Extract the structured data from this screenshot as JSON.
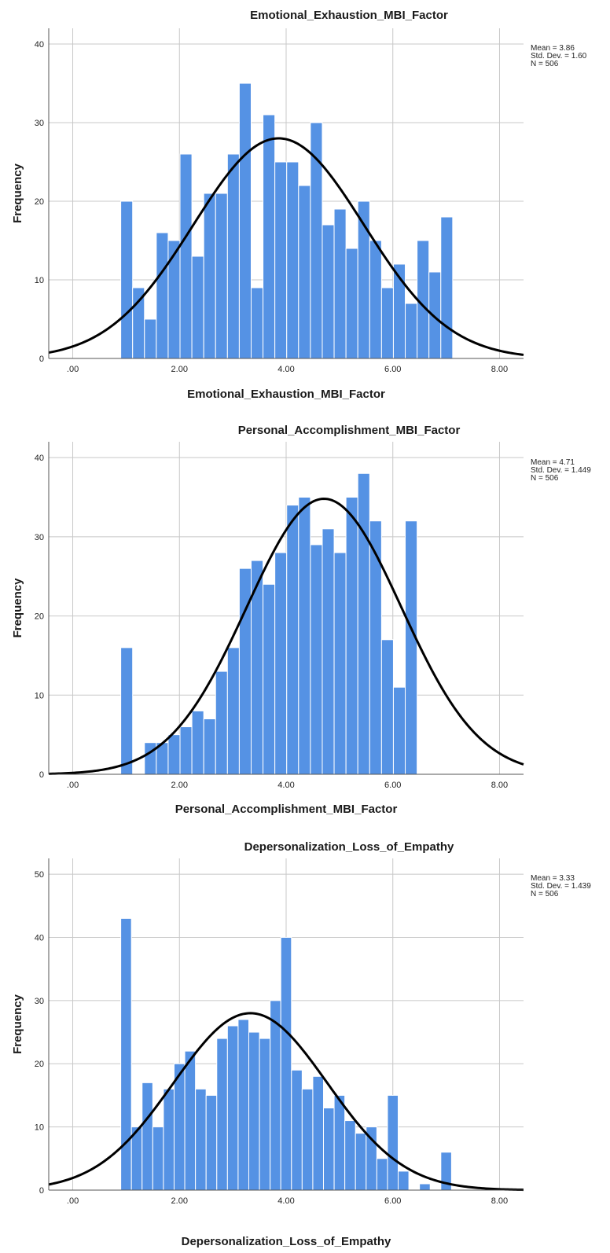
{
  "chart_data": [
    {
      "type": "bar",
      "title": "Emotional_Exhaustion_MBI_Factor",
      "xlabel": "Emotional_Exhaustion_MBI_Factor",
      "ylabel": "Frequency",
      "xlim": [
        -0.45,
        8.45
      ],
      "ylim": [
        0,
        42
      ],
      "x_ticks": [
        0,
        2,
        4,
        6,
        8
      ],
      "x_tick_labels": [
        ".00",
        "2.00",
        "4.00",
        "6.00",
        "8.00"
      ],
      "y_ticks": [
        0,
        10,
        20,
        30,
        40
      ],
      "y_tick_labels": [
        "0",
        "10",
        "20",
        "30",
        "40"
      ],
      "grid": true,
      "bin_start": 0.9,
      "bin_width": 0.2222,
      "values": [
        20,
        9,
        5,
        16,
        15,
        26,
        13,
        21,
        21,
        26,
        35,
        9,
        31,
        25,
        25,
        22,
        30,
        17,
        19,
        14,
        20,
        15,
        9,
        12,
        7,
        15,
        11,
        18
      ],
      "stats": [
        "Mean = 3.86",
        "Std. Dev. = 1.60",
        "N = 506"
      ],
      "normal_curve": {
        "mean": 3.86,
        "sd": 1.6,
        "peak": 28
      },
      "colors": {
        "bar": "#5592e4",
        "bar_edge": "#ffffff",
        "curve": "#000000",
        "grid": "#c8c8c8"
      }
    },
    {
      "type": "bar",
      "title": "Personal_Accomplishment_MBI_Factor",
      "xlabel": "Personal_Accomplishment_MBI_Factor",
      "ylabel": "Frequency",
      "xlim": [
        -0.45,
        8.45
      ],
      "ylim": [
        0,
        42
      ],
      "x_ticks": [
        0,
        2,
        4,
        6,
        8
      ],
      "x_tick_labels": [
        ".00",
        "2.00",
        "4.00",
        "6.00",
        "8.00"
      ],
      "y_ticks": [
        0,
        10,
        20,
        30,
        40
      ],
      "y_tick_labels": [
        "0",
        "10",
        "20",
        "30",
        "40"
      ],
      "grid": true,
      "bin_start": 0.9,
      "bin_width": 0.2222,
      "values": [
        16,
        0,
        4,
        4,
        5,
        6,
        8,
        7,
        13,
        16,
        26,
        27,
        24,
        28,
        34,
        35,
        29,
        31,
        28,
        35,
        38,
        32,
        17,
        11,
        32
      ],
      "stats": [
        "Mean = 4.71",
        "Std. Dev. = 1.449",
        "N = 506"
      ],
      "normal_curve": {
        "mean": 4.71,
        "sd": 1.449,
        "peak": 34.8
      },
      "colors": {
        "bar": "#5592e4",
        "bar_edge": "#ffffff",
        "curve": "#000000",
        "grid": "#c8c8c8"
      }
    },
    {
      "type": "bar",
      "title": "Depersonalization_Loss_of_Empathy",
      "xlabel": "Depersonalization_Loss_of_Empathy",
      "ylabel": "Frequency",
      "xlim": [
        -0.45,
        8.45
      ],
      "ylim": [
        0,
        52.5
      ],
      "x_ticks": [
        0,
        2,
        4,
        6,
        8
      ],
      "x_tick_labels": [
        ".00",
        "2.00",
        "4.00",
        "6.00",
        "8.00"
      ],
      "y_ticks": [
        0,
        10,
        20,
        30,
        40,
        50
      ],
      "y_tick_labels": [
        "0",
        "10",
        "20",
        "30",
        "40",
        "50"
      ],
      "grid": true,
      "bin_start": 0.9,
      "bin_width": 0.2,
      "values": [
        43,
        10,
        17,
        10,
        16,
        20,
        22,
        16,
        15,
        24,
        26,
        27,
        25,
        24,
        30,
        40,
        19,
        16,
        18,
        13,
        15,
        11,
        9,
        10,
        5,
        15,
        3,
        0,
        1,
        0,
        6
      ],
      "stats": [
        "Mean = 3.33",
        "Std. Dev. = 1.439",
        "N = 506"
      ],
      "normal_curve": {
        "mean": 3.33,
        "sd": 1.439,
        "peak": 28
      },
      "colors": {
        "bar": "#5592e4",
        "bar_edge": "#ffffff",
        "curve": "#000000",
        "grid": "#c8c8c8"
      }
    }
  ]
}
